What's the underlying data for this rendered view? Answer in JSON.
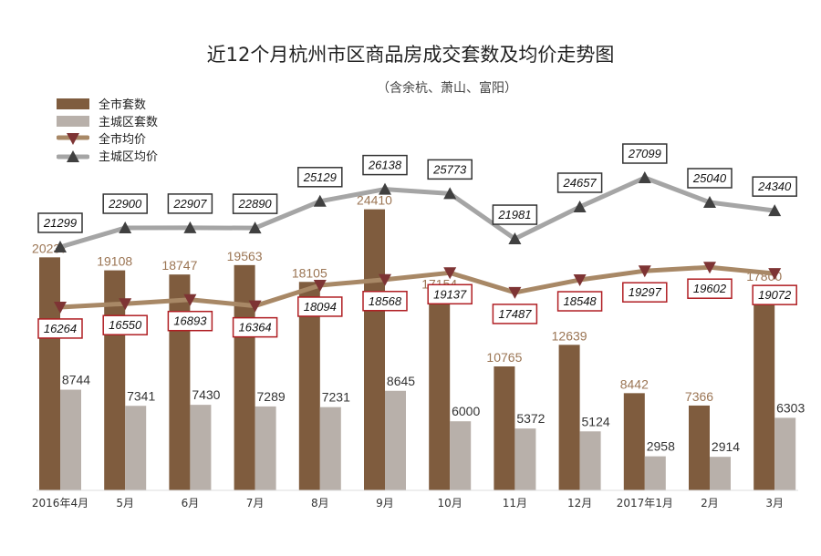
{
  "chart_data": {
    "type": "bar",
    "title": "近12个月杭州市区商品房成交套数及均价走势图",
    "subtitle": "（含余杭、萧山、富阳）",
    "categories": [
      "2016年4月",
      "5月",
      "6月",
      "7月",
      "8月",
      "9月",
      "10月",
      "11月",
      "12月",
      "2017年1月",
      "2月",
      "3月"
    ],
    "series": [
      {
        "name": "全市套数",
        "kind": "bar",
        "color": "#7f5c3e",
        "label_color": "#9b7554",
        "values": [
          20237,
          19108,
          18747,
          19563,
          18105,
          24410,
          17154,
          10765,
          12639,
          8442,
          7366,
          17800
        ]
      },
      {
        "name": "主城区套数",
        "kind": "bar",
        "color": "#b8b0aa",
        "label_color": "#333333",
        "values": [
          8744,
          7341,
          7430,
          7289,
          7231,
          8645,
          6000,
          5372,
          5124,
          2958,
          2914,
          6303
        ]
      },
      {
        "name": "全市均价",
        "kind": "line",
        "color": "#a88866",
        "marker_color": "#7e3434",
        "box_border": "#b01e23",
        "values": [
          16264,
          16550,
          16893,
          16364,
          18094,
          18568,
          19137,
          17487,
          18548,
          19297,
          19602,
          19072
        ]
      },
      {
        "name": "主城区均价",
        "kind": "line",
        "color": "#a5a5a5",
        "marker_color": "#404040",
        "box_border": "#333333",
        "values": [
          21299,
          22900,
          22907,
          22890,
          25129,
          26138,
          25773,
          21981,
          24657,
          27099,
          25040,
          24340
        ]
      }
    ],
    "ylim": [
      0,
      30000
    ],
    "price_ylim": [
      10000,
      30000
    ],
    "grid": false,
    "legend": "top-left"
  }
}
